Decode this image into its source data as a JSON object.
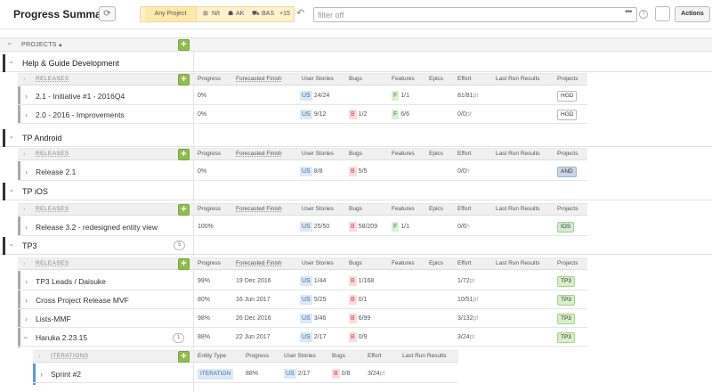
{
  "header": {
    "title": "Progress Summary",
    "context": {
      "any_project": "Any Project",
      "team1": "N/t",
      "team2": "AK",
      "team3": "BAS",
      "more": "+15"
    },
    "filter_placeholder": "filter off",
    "actions_label": "Actions",
    "help": "?"
  },
  "grid": {
    "projects_label": "PROJECTS ▴",
    "subgroup_release": "RELEASES",
    "subgroup_iteration": "ITERATIONS",
    "cols": {
      "progress": "Progress",
      "forecast": "Forecasted Finish",
      "stories": "User Stories",
      "bugs": "Bugs",
      "features": "Features",
      "epics": "Epics",
      "effort": "Effort",
      "lastrun": "Last Run Results",
      "projects": "Projects",
      "entity_type": "Entity Type"
    },
    "projects": [
      {
        "name": "Help & Guide Development",
        "releases": [
          {
            "name": "2.1 - Initiative #1 - 2016Q4",
            "progress": "0%",
            "us": "24/24",
            "bugs": "",
            "feat": "1/1",
            "effort": "81/81",
            "unit": "pt",
            "project": "HGD"
          },
          {
            "name": "2.0 - 2016 - Improvements",
            "progress": "0%",
            "us": "9/12",
            "bugs": "1/2",
            "feat": "6/6",
            "effort": "0/0",
            "unit": "pt",
            "project": "HGD"
          }
        ]
      },
      {
        "name": "TP Android",
        "releases": [
          {
            "name": "Release 2.1",
            "progress": "0%",
            "us": "8/8",
            "bugs": "5/5",
            "effort": "0/0",
            "unit": "h",
            "project": "AND"
          }
        ]
      },
      {
        "name": "TP iOS",
        "releases": [
          {
            "name": "Release 3.2 - redesigned entity view",
            "progress": "100%",
            "us": "25/50",
            "bugs": "58/209",
            "feat": "1/1",
            "effort": "0/6",
            "unit": "h",
            "project": "IOS"
          }
        ]
      },
      {
        "name": "TP3",
        "count": "5",
        "releases": [
          {
            "name": "TP3 Leads / Daisuke",
            "progress": "99%",
            "finish": "19 Dec 2016",
            "us": "1/44",
            "bugs": "1/168",
            "effort": "1/72",
            "unit": "pt",
            "project": "TP3"
          },
          {
            "name": "Cross Project Release MVF",
            "progress": "80%",
            "finish": "16 Jun 2017",
            "us": "5/25",
            "bugs": "0/1",
            "effort": "10/51",
            "unit": "pt",
            "project": "TP3"
          },
          {
            "name": "Lists-MMF",
            "progress": "98%",
            "finish": "26 Dec 2016",
            "us": "3/46",
            "bugs": "6/99",
            "effort": "3/132",
            "unit": "pt",
            "project": "TP3"
          },
          {
            "name": "Haruka 2.23.15",
            "count": "1",
            "progress": "88%",
            "finish": "22 Jun 2017",
            "us": "2/17",
            "bugs": "0/9",
            "effort": "3/24",
            "unit": "pt",
            "project": "TP3"
          }
        ]
      }
    ],
    "iteration": {
      "name": "Sprint #2",
      "type": "ITERATION",
      "progress": "88%",
      "us": "2/17",
      "bugs": "0/8",
      "effort": "3/24",
      "unit": "pt"
    },
    "tags": {
      "us": "US",
      "bug": "B",
      "feat": "F"
    }
  }
}
